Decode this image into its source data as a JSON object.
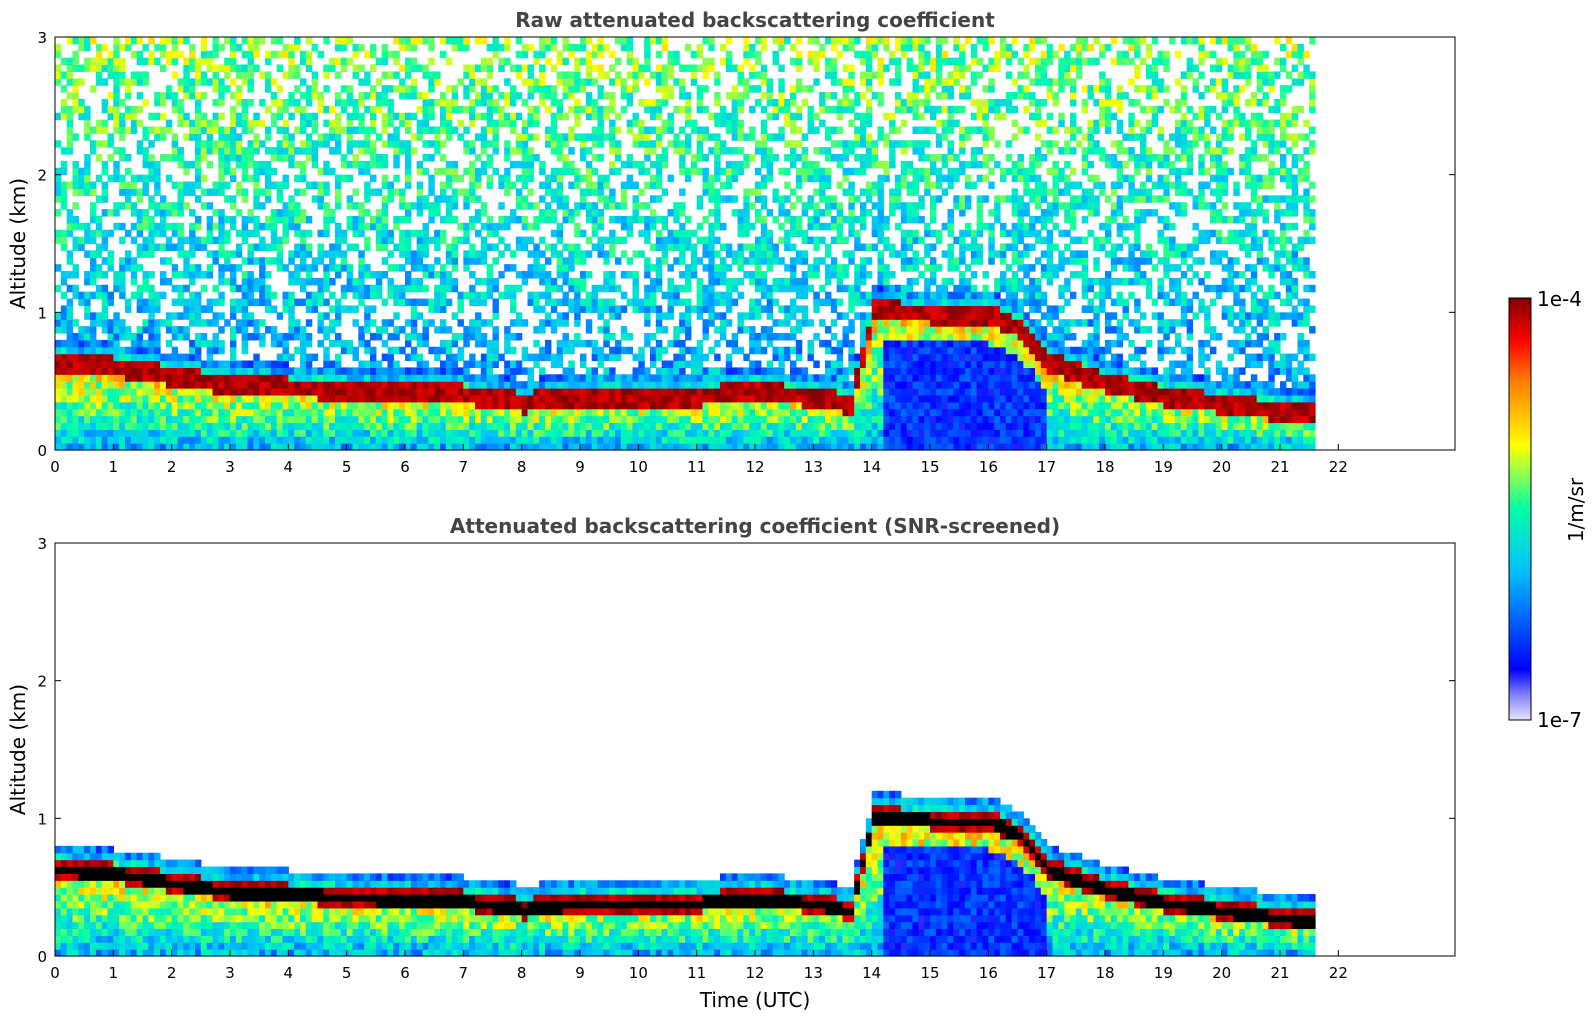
{
  "chart_data": [
    {
      "type": "heatmap",
      "title": "Raw attenuated backscattering coefficient",
      "xlabel": "",
      "ylabel": "Altitude (km)",
      "xlim": [
        0,
        24
      ],
      "ylim": [
        0,
        3
      ],
      "x_ticks": [
        0,
        1,
        2,
        3,
        4,
        5,
        6,
        7,
        8,
        9,
        10,
        11,
        12,
        13,
        14,
        15,
        16,
        17,
        18,
        19,
        20,
        21,
        22
      ],
      "y_ticks": [
        0,
        1,
        2,
        3
      ],
      "data_end_time": 21.6,
      "screened": false,
      "layer_height_km": [
        [
          0.0,
          0.6
        ],
        [
          1.0,
          0.57
        ],
        [
          2.0,
          0.5
        ],
        [
          3.0,
          0.44
        ],
        [
          4.0,
          0.42
        ],
        [
          5.0,
          0.4
        ],
        [
          6.0,
          0.38
        ],
        [
          7.0,
          0.37
        ],
        [
          8.0,
          0.31
        ],
        [
          9.0,
          0.36
        ],
        [
          10.0,
          0.36
        ],
        [
          11.0,
          0.36
        ],
        [
          12.0,
          0.39
        ],
        [
          13.0,
          0.35
        ],
        [
          13.6,
          0.3
        ],
        [
          14.0,
          0.98
        ],
        [
          15.0,
          0.96
        ],
        [
          16.0,
          0.95
        ],
        [
          16.5,
          0.85
        ],
        [
          17.0,
          0.6
        ],
        [
          18.0,
          0.45
        ],
        [
          19.0,
          0.36
        ],
        [
          20.0,
          0.3
        ],
        [
          21.0,
          0.25
        ],
        [
          21.6,
          0.22
        ]
      ]
    },
    {
      "type": "heatmap",
      "title": "Attenuated backscattering coefficient (SNR-screened)",
      "xlabel": "Time (UTC)",
      "ylabel": "Altitude (km)",
      "xlim": [
        0,
        24
      ],
      "ylim": [
        0,
        3
      ],
      "x_ticks": [
        0,
        1,
        2,
        3,
        4,
        5,
        6,
        7,
        8,
        9,
        10,
        11,
        12,
        13,
        14,
        15,
        16,
        17,
        18,
        19,
        20,
        21,
        22
      ],
      "y_ticks": [
        0,
        1,
        2,
        3
      ],
      "data_end_time": 21.6,
      "screened": true,
      "layer_height_km": [
        [
          0.0,
          0.6
        ],
        [
          1.0,
          0.57
        ],
        [
          2.0,
          0.5
        ],
        [
          3.0,
          0.44
        ],
        [
          4.0,
          0.42
        ],
        [
          5.0,
          0.4
        ],
        [
          6.0,
          0.38
        ],
        [
          7.0,
          0.37
        ],
        [
          8.0,
          0.31
        ],
        [
          9.0,
          0.36
        ],
        [
          10.0,
          0.36
        ],
        [
          11.0,
          0.36
        ],
        [
          12.0,
          0.39
        ],
        [
          13.0,
          0.35
        ],
        [
          13.6,
          0.3
        ],
        [
          14.0,
          0.98
        ],
        [
          15.0,
          0.96
        ],
        [
          16.0,
          0.95
        ],
        [
          16.5,
          0.85
        ],
        [
          17.0,
          0.6
        ],
        [
          18.0,
          0.45
        ],
        [
          19.0,
          0.36
        ],
        [
          20.0,
          0.3
        ],
        [
          21.0,
          0.25
        ],
        [
          21.6,
          0.22
        ]
      ]
    }
  ],
  "colorbar": {
    "max_label": "1e-4",
    "min_label": "1e-7",
    "unit_label": "1/m/sr",
    "colors": [
      "#e6e6fa",
      "#0000ff",
      "#00bfff",
      "#00ffaa",
      "#ffff00",
      "#ff8000",
      "#ff0000",
      "#800000"
    ]
  }
}
